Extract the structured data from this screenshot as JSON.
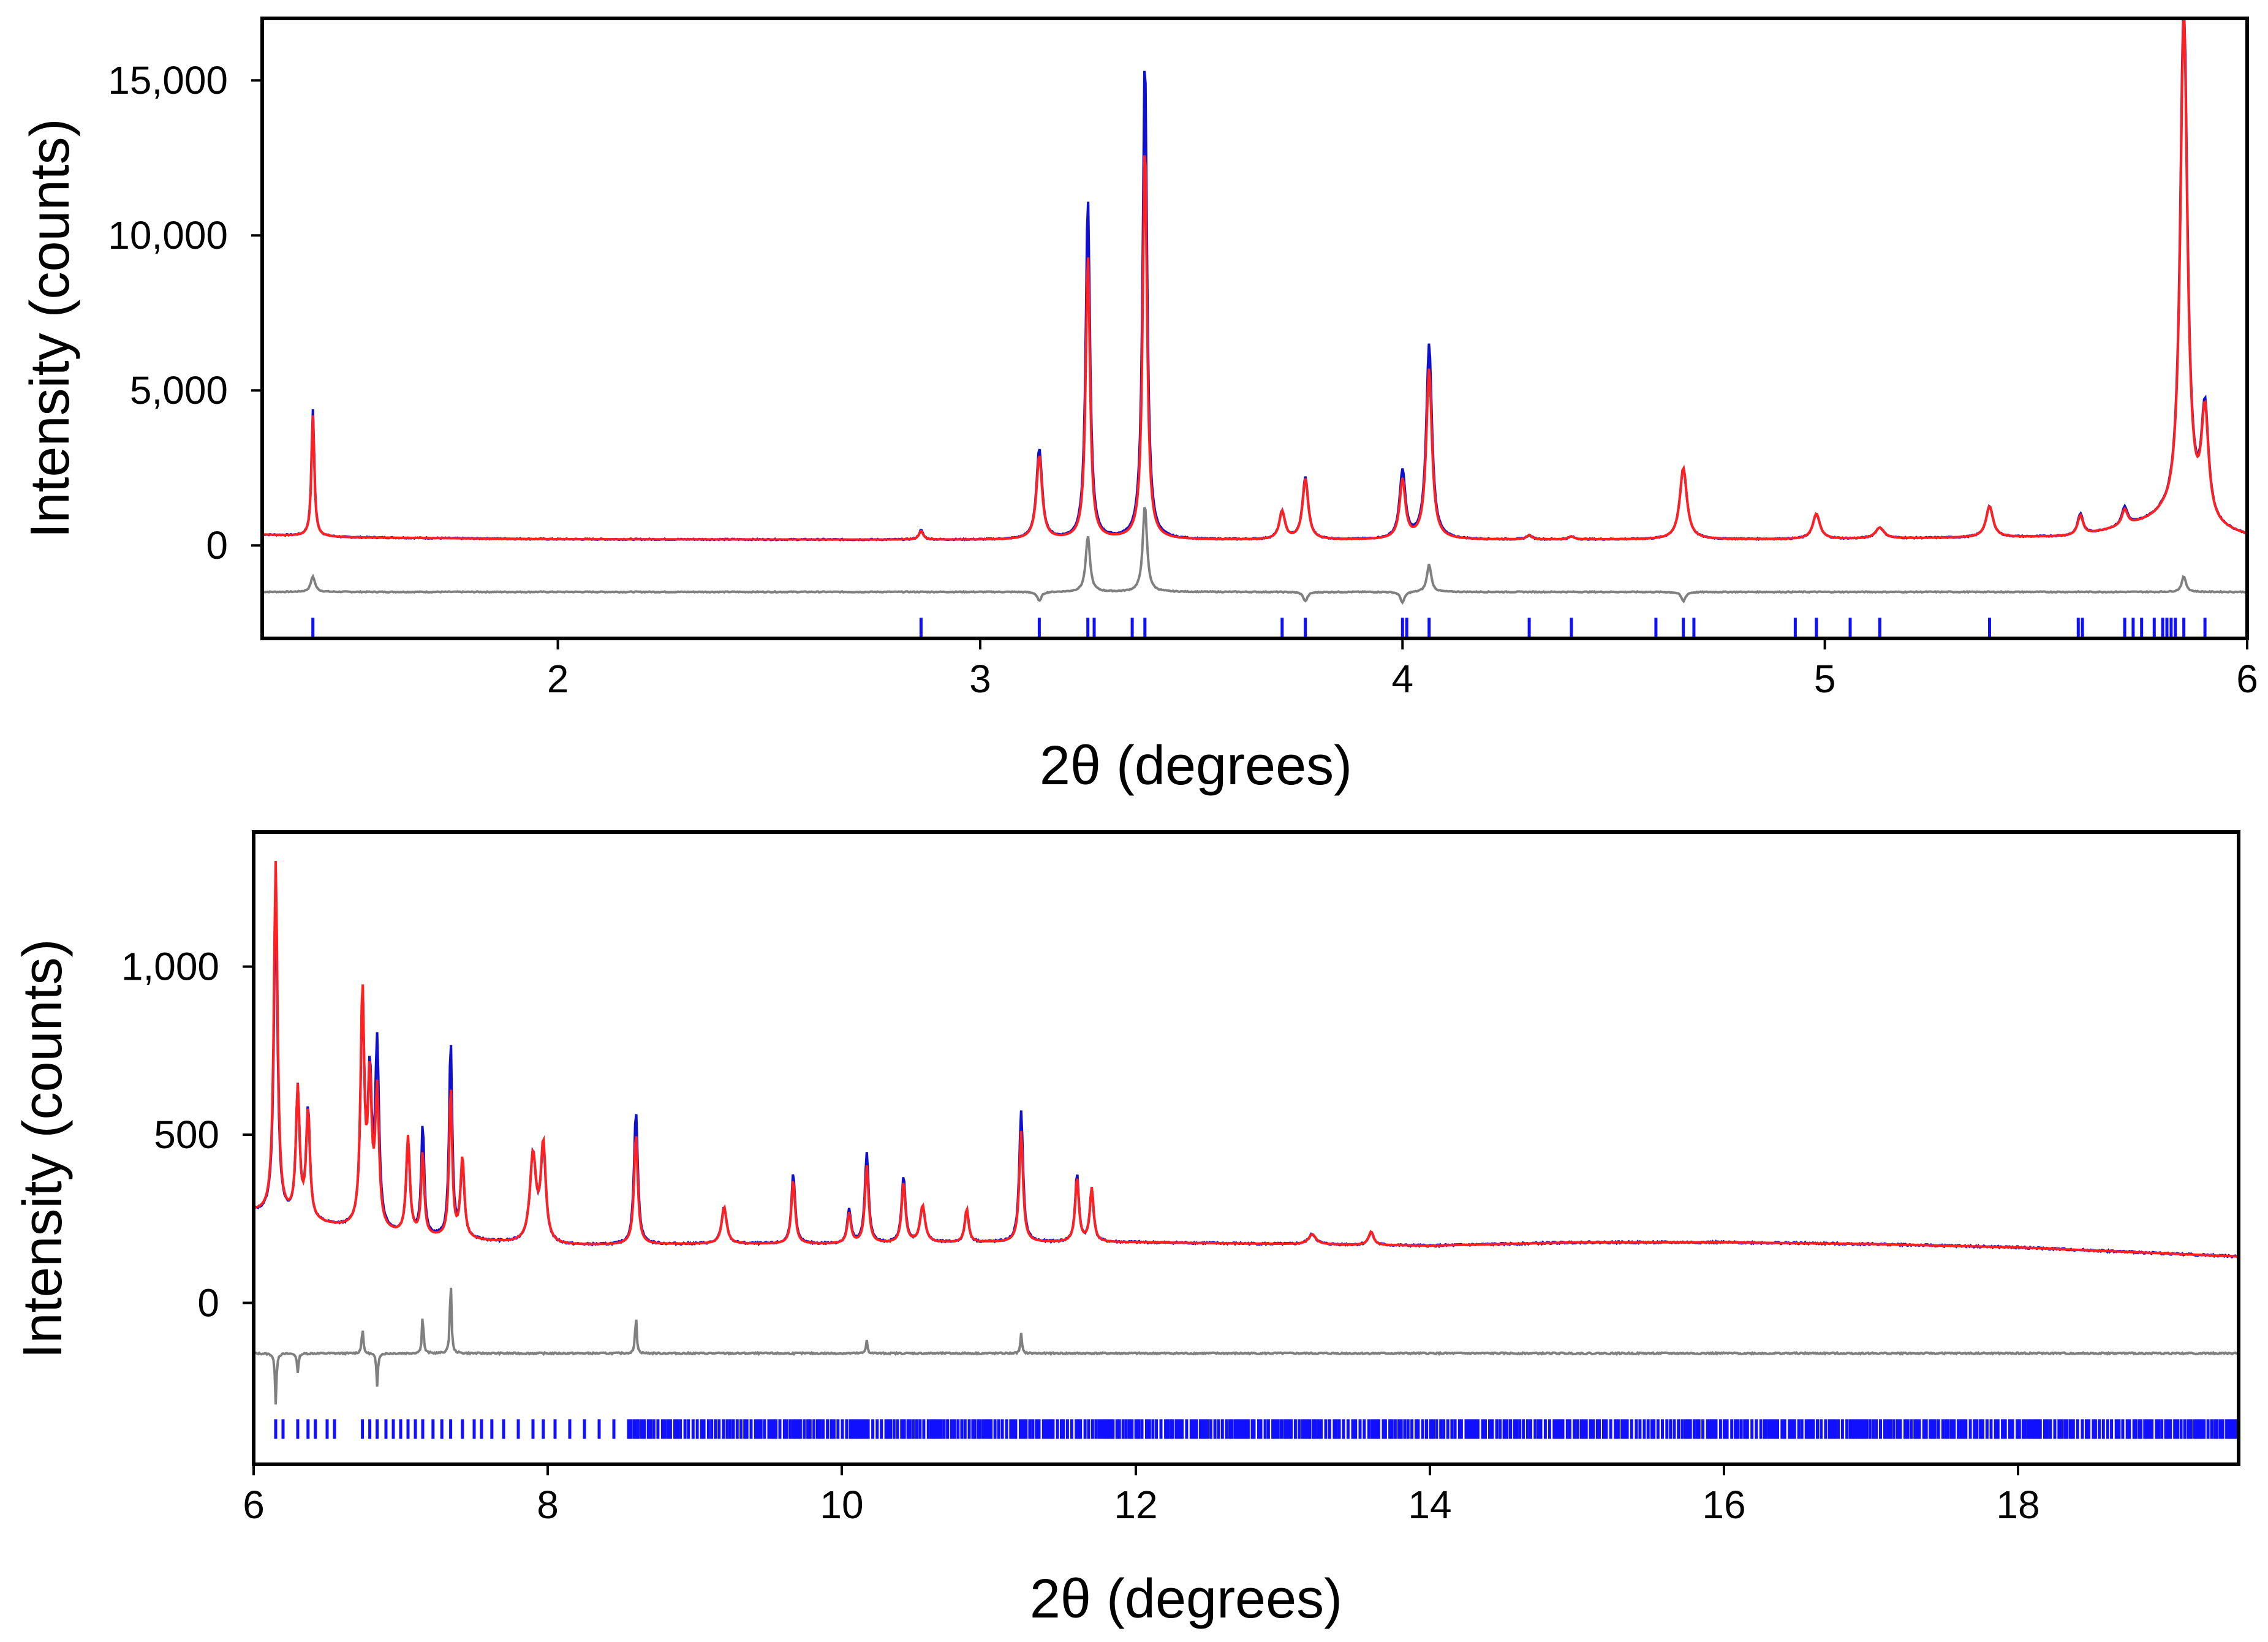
{
  "chart_data": [
    {
      "type": "line",
      "panel": "top",
      "xlabel": "2θ (degrees)",
      "ylabel": "Intensity (counts)",
      "xlim": [
        1.3,
        6.0
      ],
      "ylim": [
        -3000,
        17000
      ],
      "x_ticks": [
        2,
        3,
        4,
        5,
        6
      ],
      "x_tick_labels": [
        "2",
        "3",
        "4",
        "5",
        "6"
      ],
      "y_ticks": [
        0,
        5000,
        10000,
        15000
      ],
      "y_tick_labels": [
        "0",
        "5,000",
        "10,000",
        "15,000"
      ],
      "background": [
        [
          1.3,
          350
        ],
        [
          1.5,
          260
        ],
        [
          2.0,
          200
        ],
        [
          3.0,
          180
        ],
        [
          4.0,
          180
        ],
        [
          5.0,
          200
        ],
        [
          5.6,
          280
        ],
        [
          5.8,
          800
        ],
        [
          6.0,
          280
        ]
      ],
      "peaks": [
        {
          "x": 1.42,
          "obs": 4100,
          "calc": 3900,
          "w": 0.004
        },
        {
          "x": 2.86,
          "obs": 300,
          "calc": 280,
          "w": 0.006
        },
        {
          "x": 3.14,
          "obs": 2900,
          "calc": 2700,
          "w": 0.008
        },
        {
          "x": 3.255,
          "obs": 11000,
          "calc": 9200,
          "w": 0.006
        },
        {
          "x": 3.39,
          "obs": 15600,
          "calc": 12800,
          "w": 0.006
        },
        {
          "x": 3.715,
          "obs": 900,
          "calc": 900,
          "w": 0.008
        },
        {
          "x": 3.77,
          "obs": 2000,
          "calc": 1950,
          "w": 0.008
        },
        {
          "x": 4.0,
          "obs": 2200,
          "calc": 1900,
          "w": 0.008
        },
        {
          "x": 4.063,
          "obs": 6300,
          "calc": 5500,
          "w": 0.008
        },
        {
          "x": 4.3,
          "obs": 130,
          "calc": 130,
          "w": 0.008
        },
        {
          "x": 4.4,
          "obs": 90,
          "calc": 90,
          "w": 0.008
        },
        {
          "x": 4.665,
          "obs": 2300,
          "calc": 2300,
          "w": 0.01
        },
        {
          "x": 4.98,
          "obs": 800,
          "calc": 820,
          "w": 0.01
        },
        {
          "x": 5.13,
          "obs": 350,
          "calc": 350,
          "w": 0.012
        },
        {
          "x": 5.39,
          "obs": 1000,
          "calc": 1000,
          "w": 0.01
        },
        {
          "x": 5.605,
          "obs": 700,
          "calc": 650,
          "w": 0.008
        },
        {
          "x": 5.71,
          "obs": 600,
          "calc": 520,
          "w": 0.008
        },
        {
          "x": 5.85,
          "obs": 17000,
          "calc": 16400,
          "w": 0.01
        },
        {
          "x": 5.9,
          "obs": 3600,
          "calc": 3500,
          "w": 0.01
        }
      ],
      "difference_offset": -1500,
      "difference_spikes": [
        {
          "x": 1.42,
          "amp": 500
        },
        {
          "x": 3.14,
          "amp": -300
        },
        {
          "x": 3.255,
          "amp": 1800
        },
        {
          "x": 3.39,
          "amp": 2800
        },
        {
          "x": 3.77,
          "amp": -300
        },
        {
          "x": 4.0,
          "amp": -350
        },
        {
          "x": 4.063,
          "amp": 900
        },
        {
          "x": 4.665,
          "amp": -300
        },
        {
          "x": 5.85,
          "amp": 500
        }
      ],
      "reflection_y": -2650,
      "reflections": [
        1.42,
        2.86,
        3.14,
        3.255,
        3.27,
        3.36,
        3.39,
        3.715,
        3.77,
        4.0,
        4.01,
        4.063,
        4.3,
        4.4,
        4.6,
        4.665,
        4.69,
        4.93,
        4.98,
        5.06,
        5.13,
        5.39,
        5.6,
        5.61,
        5.71,
        5.73,
        5.75,
        5.78,
        5.8,
        5.81,
        5.82,
        5.83,
        5.85,
        5.9
      ],
      "colors": {
        "observed": "#1010d0",
        "calculated": "#ff2020",
        "difference": "#808080",
        "reflections": "#1010ff"
      }
    },
    {
      "type": "line",
      "panel": "bottom",
      "xlabel": "2θ (degrees)",
      "ylabel": "Intensity (counts)",
      "xlim": [
        6.0,
        19.5
      ],
      "ylim": [
        -480,
        1400
      ],
      "x_ticks": [
        6,
        8,
        10,
        12,
        14,
        16,
        18
      ],
      "x_tick_labels": [
        "6",
        "8",
        "10",
        "12",
        "14",
        "16",
        "18"
      ],
      "y_ticks": [
        0,
        500,
        1000
      ],
      "y_tick_labels": [
        "0",
        "500",
        "1,000"
      ],
      "background": [
        [
          6.0,
          270
        ],
        [
          6.5,
          230
        ],
        [
          7.0,
          200
        ],
        [
          8.0,
          170
        ],
        [
          9.0,
          175
        ],
        [
          10.0,
          175
        ],
        [
          11.0,
          180
        ],
        [
          12.0,
          180
        ],
        [
          13.0,
          175
        ],
        [
          14.0,
          170
        ],
        [
          15.0,
          180
        ],
        [
          16.0,
          180
        ],
        [
          17.0,
          175
        ],
        [
          18.0,
          165
        ],
        [
          19.5,
          138
        ]
      ],
      "peaks": [
        {
          "x": 6.15,
          "obs": 950,
          "calc": 1050,
          "w": 0.015
        },
        {
          "x": 6.3,
          "obs": 380,
          "calc": 380,
          "w": 0.015
        },
        {
          "x": 6.37,
          "obs": 330,
          "calc": 320,
          "w": 0.015
        },
        {
          "x": 6.74,
          "obs": 680,
          "calc": 700,
          "w": 0.015
        },
        {
          "x": 6.79,
          "obs": 430,
          "calc": 420,
          "w": 0.015
        },
        {
          "x": 6.84,
          "obs": 540,
          "calc": 400,
          "w": 0.015
        },
        {
          "x": 7.05,
          "obs": 280,
          "calc": 290,
          "w": 0.015
        },
        {
          "x": 7.15,
          "obs": 330,
          "calc": 250,
          "w": 0.012
        },
        {
          "x": 7.34,
          "obs": 590,
          "calc": 450,
          "w": 0.012
        },
        {
          "x": 7.42,
          "obs": 230,
          "calc": 240,
          "w": 0.015
        },
        {
          "x": 7.9,
          "obs": 260,
          "calc": 260,
          "w": 0.025
        },
        {
          "x": 7.97,
          "obs": 280,
          "calc": 290,
          "w": 0.02
        },
        {
          "x": 8.6,
          "obs": 400,
          "calc": 330,
          "w": 0.015
        },
        {
          "x": 9.2,
          "obs": 110,
          "calc": 110,
          "w": 0.02
        },
        {
          "x": 9.67,
          "obs": 210,
          "calc": 190,
          "w": 0.015
        },
        {
          "x": 10.05,
          "obs": 100,
          "calc": 90,
          "w": 0.015
        },
        {
          "x": 10.17,
          "obs": 270,
          "calc": 230,
          "w": 0.015
        },
        {
          "x": 10.42,
          "obs": 200,
          "calc": 180,
          "w": 0.015
        },
        {
          "x": 10.55,
          "obs": 110,
          "calc": 110,
          "w": 0.02
        },
        {
          "x": 10.85,
          "obs": 100,
          "calc": 100,
          "w": 0.015
        },
        {
          "x": 11.22,
          "obs": 390,
          "calc": 330,
          "w": 0.015
        },
        {
          "x": 11.6,
          "obs": 200,
          "calc": 190,
          "w": 0.015
        },
        {
          "x": 11.7,
          "obs": 160,
          "calc": 160,
          "w": 0.015
        },
        {
          "x": 13.2,
          "obs": 30,
          "calc": 30,
          "w": 0.03
        },
        {
          "x": 13.6,
          "obs": 40,
          "calc": 40,
          "w": 0.02
        }
      ],
      "difference_offset": -150,
      "difference_spikes": [
        {
          "x": 6.15,
          "amp": -150
        },
        {
          "x": 6.3,
          "amp": -60
        },
        {
          "x": 6.74,
          "amp": 80
        },
        {
          "x": 6.84,
          "amp": -100
        },
        {
          "x": 7.15,
          "amp": 120
        },
        {
          "x": 7.34,
          "amp": 230
        },
        {
          "x": 8.6,
          "amp": 120
        },
        {
          "x": 10.17,
          "amp": 40
        },
        {
          "x": 11.22,
          "amp": 60
        }
      ],
      "reflection_y": -375,
      "reflections": [
        6.15,
        6.2,
        6.3,
        6.37,
        6.42,
        6.5,
        6.55,
        6.74,
        6.79,
        6.84,
        6.9,
        6.95,
        7.0,
        7.05,
        7.1,
        7.15,
        7.22,
        7.28,
        7.34,
        7.42,
        7.5,
        7.55,
        7.62,
        7.7,
        7.8,
        7.9,
        7.97,
        8.05,
        8.15,
        8.25,
        8.35,
        8.45
      ],
      "reflection_dense_from": 8.55,
      "reflection_dense_to": 19.5,
      "colors": {
        "observed": "#1010d0",
        "calculated": "#ff2020",
        "difference": "#808080",
        "reflections": "#1010ff"
      }
    }
  ]
}
